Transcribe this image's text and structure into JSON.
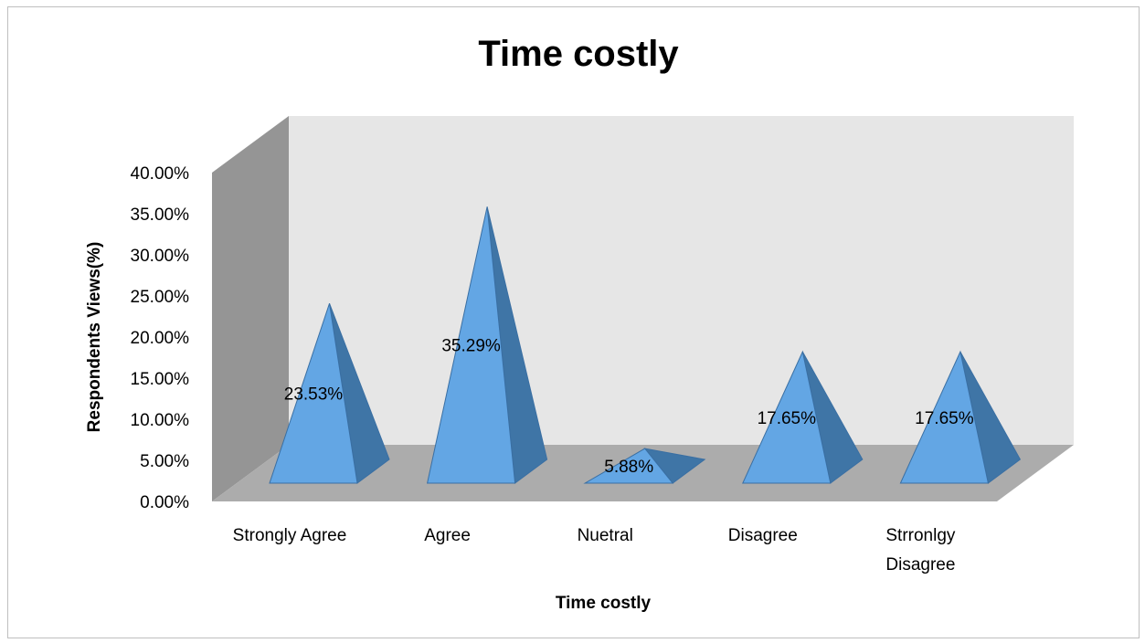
{
  "chart_data": {
    "type": "bar",
    "subtype": "3d-pyramid",
    "title": "Time costly",
    "xlabel": "Time costly",
    "ylabel": "Respondents Views(%)",
    "categories": [
      "Strongly Agree",
      "Agree",
      "Nuetral",
      "Disagree",
      "Strronlgy Disagree"
    ],
    "category_lines": [
      [
        "Strongly Agree"
      ],
      [
        "Agree"
      ],
      [
        "Nuetral"
      ],
      [
        "Disagree"
      ],
      [
        "Strronlgy",
        "Disagree"
      ]
    ],
    "values": [
      0.2353,
      0.3529,
      0.0588,
      0.1765,
      0.1765
    ],
    "data_labels": [
      "23.53%",
      "35.29%",
      "5.88%",
      "17.65%",
      "17.65%"
    ],
    "ylim": [
      0,
      0.4
    ],
    "yticks": [
      0,
      0.05,
      0.1,
      0.15,
      0.2,
      0.25,
      0.3,
      0.35,
      0.4
    ],
    "ytick_labels": [
      "0.00%",
      "5.00%",
      "10.00%",
      "15.00%",
      "20.00%",
      "25.00%",
      "30.00%",
      "35.00%",
      "40.00%"
    ],
    "grid": false,
    "legend": "none",
    "colors": {
      "pyramid_front": "#63a6e4",
      "pyramid_side": "#3f75a6",
      "pyramid_edge": "#3a6fa3",
      "back_wall": "#e6e6e6",
      "side_wall": "#959595",
      "floor": "#acacac"
    }
  }
}
